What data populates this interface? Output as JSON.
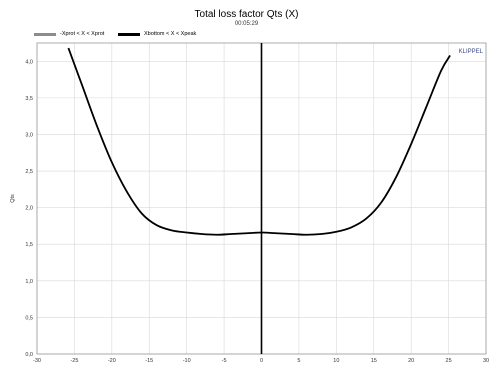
{
  "header": {
    "title": "Total loss factor Qts (X)",
    "time": "00:05:29"
  },
  "legend": [
    {
      "label": "-Xprot < X < Xprot",
      "color": "#8c8c8c"
    },
    {
      "label": "Xbottom < X < Xpeak",
      "color": "#000000"
    }
  ],
  "brand": "KLIPPEL",
  "chart_data": {
    "type": "line",
    "title": "Total loss factor Qts (X)",
    "ylabel": "Qts",
    "xlabel": "",
    "xlim": [
      -30,
      30
    ],
    "ylim": [
      0.0,
      4.25
    ],
    "grid": true,
    "x_ticks": [
      -30,
      -25,
      -20,
      -15,
      -10,
      -5,
      0,
      5,
      10,
      15,
      20,
      25,
      30
    ],
    "y_ticks": [
      0.0,
      0.5,
      1.0,
      1.5,
      2.0,
      2.5,
      3.0,
      3.5,
      4.0
    ],
    "y_tick_labels": [
      "0,0",
      "0,5",
      "1,0",
      "1,5",
      "2,0",
      "2,5",
      "3,0",
      "3,5",
      "4,0"
    ],
    "vertical_marker_x": 0,
    "series": [
      {
        "name": "Xbottom < X < Xpeak",
        "color": "#000000",
        "x": [
          -25.8,
          -24,
          -22,
          -20,
          -18,
          -16,
          -14,
          -12,
          -10,
          -8,
          -6,
          -4,
          -2,
          0,
          2,
          4,
          6,
          8,
          10,
          12,
          14,
          16,
          18,
          20,
          22,
          24,
          25.2
        ],
        "y": [
          4.18,
          3.68,
          3.12,
          2.62,
          2.22,
          1.92,
          1.76,
          1.69,
          1.66,
          1.64,
          1.63,
          1.64,
          1.65,
          1.66,
          1.65,
          1.64,
          1.63,
          1.64,
          1.67,
          1.73,
          1.85,
          2.07,
          2.42,
          2.87,
          3.37,
          3.87,
          4.08
        ]
      }
    ]
  }
}
